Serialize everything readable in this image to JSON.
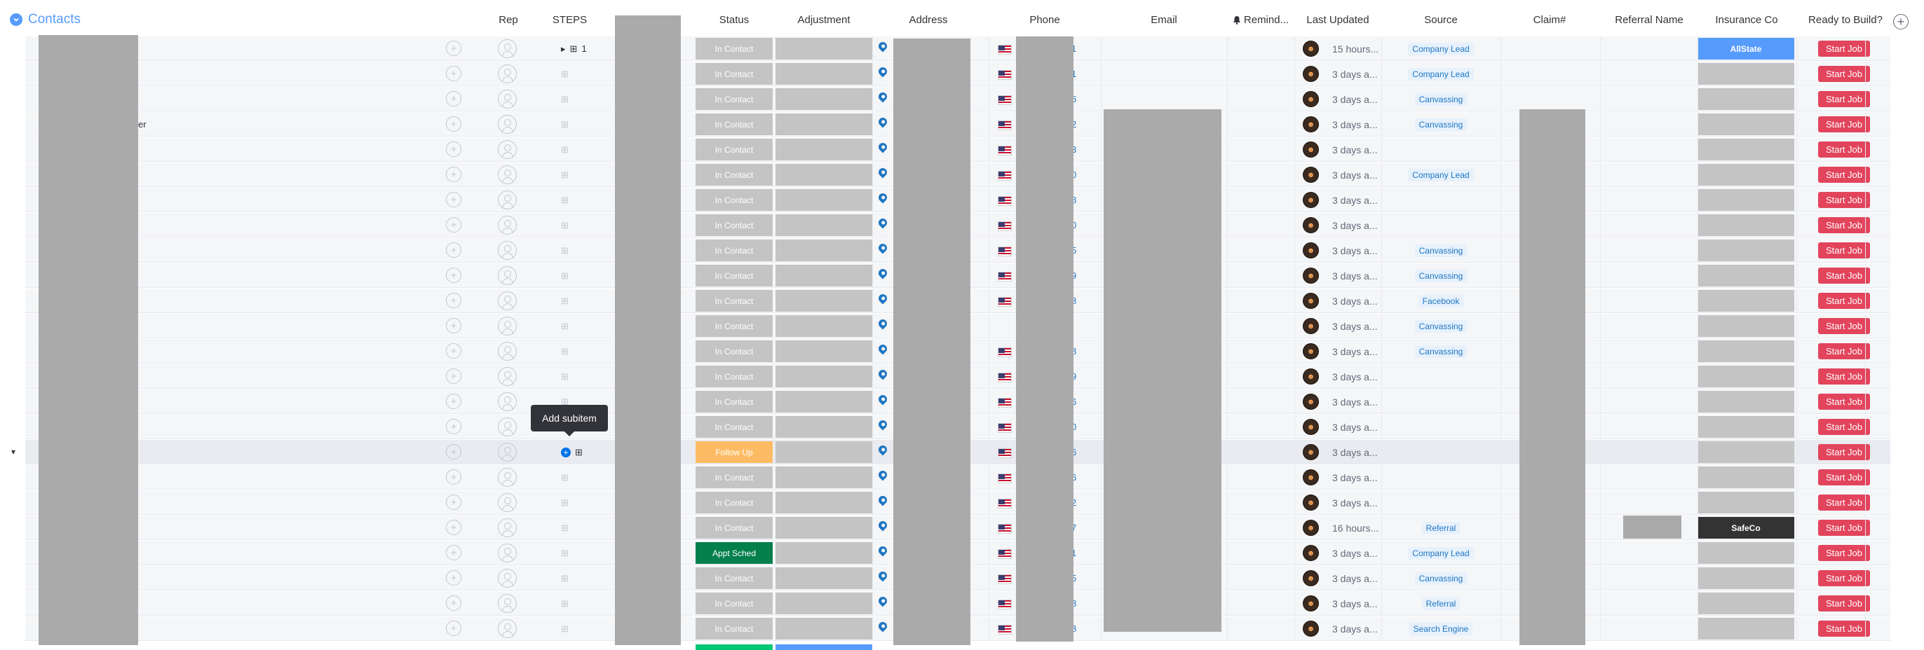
{
  "group": {
    "title": "Contacts"
  },
  "columns": {
    "rep": "Rep",
    "steps": "STEPS",
    "status": "Status",
    "adjustment": "Adjustment",
    "address": "Address",
    "phone": "Phone",
    "email": "Email",
    "reminder": "Remind...",
    "last_updated": "Last Updated",
    "source": "Source",
    "claim": "Claim#",
    "referral_name": "Referral Name",
    "insurance_co": "Insurance Co",
    "ready_to_build": "Ready to Build?"
  },
  "colors": {
    "accent": "#579bfc",
    "in_contact": "#c4c4c4",
    "follow_up": "#fdbc64",
    "appt_sched": "#037f4c",
    "start_job": "#e2445c",
    "allstate": "#579bfc",
    "safeco": "#333333"
  },
  "tooltip": "Add subitem",
  "name_fragment": "er",
  "rows": [
    {
      "steps": "1",
      "status": "In Contact",
      "status_color": "#c4c4c4",
      "phone_end": "1",
      "last_updated": "15 hours...",
      "source": "Company Lead",
      "insurance": "AllState",
      "start": "Start Job"
    },
    {
      "steps": "",
      "status": "In Contact",
      "status_color": "#c4c4c4",
      "phone_end": "1",
      "last_updated": "3 days a...",
      "source": "Company Lead",
      "insurance": "",
      "start": "Start Job"
    },
    {
      "steps": "",
      "status": "In Contact",
      "status_color": "#c4c4c4",
      "phone_end": "6",
      "last_updated": "3 days a...",
      "source": "Canvassing",
      "insurance": "",
      "start": "Start Job"
    },
    {
      "steps": "",
      "status": "In Contact",
      "status_color": "#c4c4c4",
      "phone_end": "2",
      "last_updated": "3 days a...",
      "source": "Canvassing",
      "insurance": "",
      "start": "Start Job"
    },
    {
      "steps": "",
      "status": "In Contact",
      "status_color": "#c4c4c4",
      "phone_end": "3",
      "last_updated": "3 days a...",
      "source": "",
      "insurance": "",
      "start": "Start Job"
    },
    {
      "steps": "",
      "status": "In Contact",
      "status_color": "#c4c4c4",
      "phone_end": "0",
      "last_updated": "3 days a...",
      "source": "Company Lead",
      "insurance": "",
      "start": "Start Job"
    },
    {
      "steps": "",
      "status": "In Contact",
      "status_color": "#c4c4c4",
      "phone_end": "8",
      "last_updated": "3 days a...",
      "source": "",
      "insurance": "",
      "start": "Start Job"
    },
    {
      "steps": "",
      "status": "In Contact",
      "status_color": "#c4c4c4",
      "phone_end": "0",
      "last_updated": "3 days a...",
      "source": "",
      "insurance": "",
      "start": "Start Job"
    },
    {
      "steps": "",
      "status": "In Contact",
      "status_color": "#c4c4c4",
      "phone_end": "5",
      "last_updated": "3 days a...",
      "source": "Canvassing",
      "insurance": "",
      "start": "Start Job"
    },
    {
      "steps": "",
      "status": "In Contact",
      "status_color": "#c4c4c4",
      "phone_end": "9",
      "last_updated": "3 days a...",
      "source": "Canvassing",
      "insurance": "",
      "start": "Start Job"
    },
    {
      "steps": "",
      "status": "In Contact",
      "status_color": "#c4c4c4",
      "phone_end": "8",
      "last_updated": "3 days a...",
      "source": "Facebook",
      "insurance": "",
      "start": "Start Job"
    },
    {
      "steps": "",
      "status": "In Contact",
      "status_color": "#c4c4c4",
      "phone_end": "",
      "last_updated": "3 days a...",
      "source": "Canvassing",
      "insurance": "",
      "start": "Start Job"
    },
    {
      "steps": "",
      "status": "In Contact",
      "status_color": "#c4c4c4",
      "phone_end": "8",
      "last_updated": "3 days a...",
      "source": "Canvassing",
      "insurance": "",
      "start": "Start Job"
    },
    {
      "steps": "",
      "status": "In Contact",
      "status_color": "#c4c4c4",
      "phone_end": "9",
      "last_updated": "3 days a...",
      "source": "",
      "insurance": "",
      "start": "Start Job"
    },
    {
      "steps": "",
      "status": "In Contact",
      "status_color": "#c4c4c4",
      "phone_end": "6",
      "last_updated": "3 days a...",
      "source": "",
      "insurance": "",
      "start": "Start Job"
    },
    {
      "steps": "",
      "status": "In Contact",
      "status_color": "#c4c4c4",
      "phone_end": "0",
      "last_updated": "3 days a...",
      "source": "",
      "insurance": "",
      "start": "Start Job"
    },
    {
      "steps": "",
      "status": "Follow Up",
      "status_color": "#fdbc64",
      "phone_end": "6",
      "last_updated": "3 days a...",
      "source": "",
      "insurance": "",
      "start": "Start Job",
      "hover": true
    },
    {
      "steps": "",
      "status": "In Contact",
      "status_color": "#c4c4c4",
      "phone_end": "6",
      "last_updated": "3 days a...",
      "source": "",
      "insurance": "",
      "start": "Start Job"
    },
    {
      "steps": "",
      "status": "In Contact",
      "status_color": "#c4c4c4",
      "phone_end": "2",
      "last_updated": "3 days a...",
      "source": "",
      "insurance": "",
      "start": "Start Job"
    },
    {
      "steps": "",
      "status": "In Contact",
      "status_color": "#c4c4c4",
      "phone_end": "7",
      "last_updated": "16 hours...",
      "source": "Referral",
      "insurance": "SafeCo",
      "start": "Start Job"
    },
    {
      "steps": "",
      "status": "Appt Sched",
      "status_color": "#037f4c",
      "phone_end": "1",
      "last_updated": "3 days a...",
      "source": "Company Lead",
      "insurance": "",
      "start": "Start Job"
    },
    {
      "steps": "",
      "status": "In Contact",
      "status_color": "#c4c4c4",
      "phone_end": "5",
      "last_updated": "3 days a...",
      "source": "Canvassing",
      "insurance": "",
      "start": "Start Job"
    },
    {
      "steps": "",
      "status": "In Contact",
      "status_color": "#c4c4c4",
      "phone_end": "8",
      "last_updated": "3 days a...",
      "source": "Referral",
      "insurance": "",
      "start": "Start Job"
    },
    {
      "steps": "",
      "status": "In Contact",
      "status_color": "#c4c4c4",
      "phone_end": "8",
      "last_updated": "3 days a...",
      "source": "Search Engine",
      "insurance": "",
      "start": "Start Job"
    }
  ]
}
